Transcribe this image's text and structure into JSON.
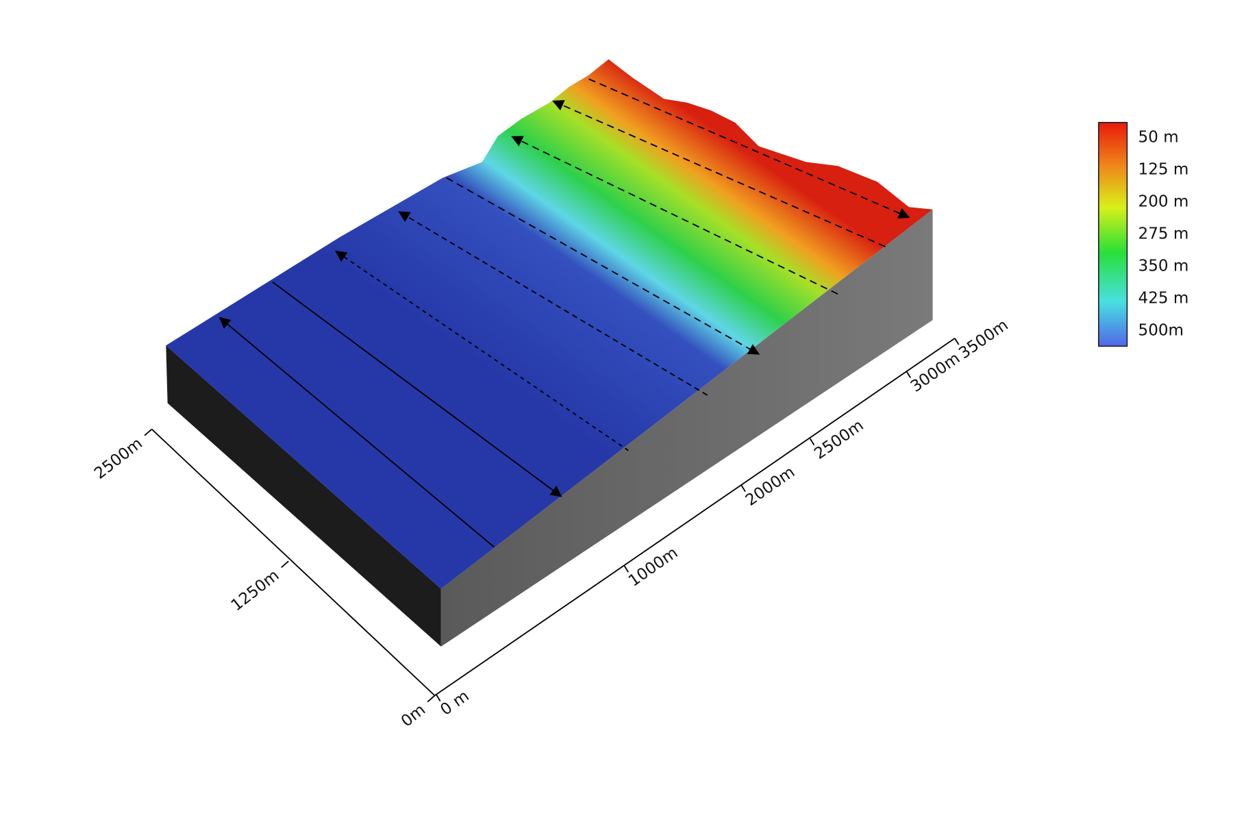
{
  "y_axis": {
    "ticks": [
      "0m",
      "1250m",
      "2500m"
    ]
  },
  "x_axis": {
    "ticks": [
      "0 m",
      "1000m",
      "2000m",
      "2500m",
      "3000m",
      "3500m"
    ]
  },
  "legend": {
    "labels": [
      "50 m",
      "125 m",
      "200 m",
      "275 m",
      "350 m",
      "425 m",
      "500m"
    ]
  }
}
